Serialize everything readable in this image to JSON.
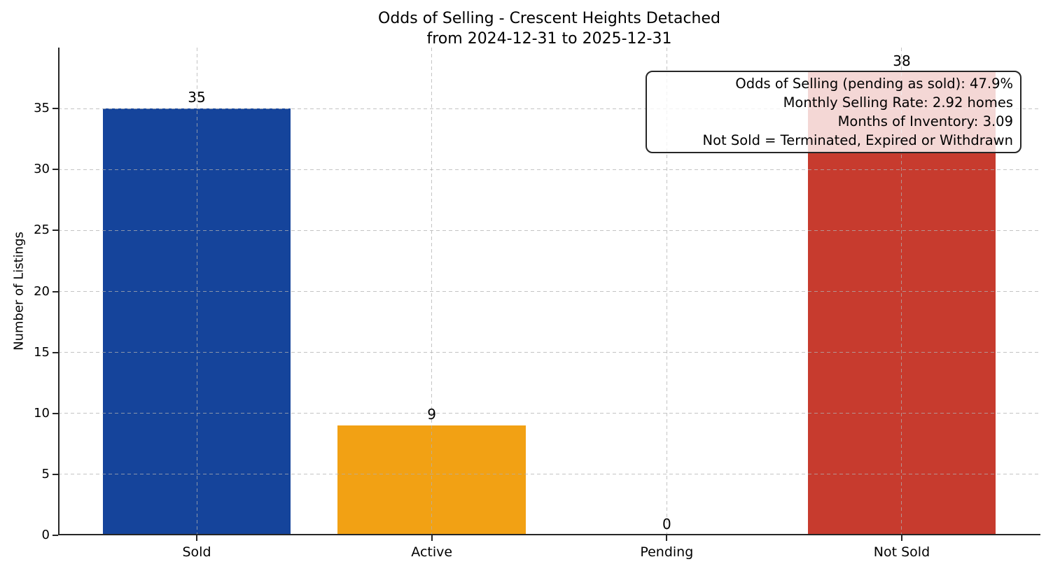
{
  "figure": {
    "background_color": "#ffffff",
    "axis_color": "#262626",
    "grid_color": "#b0b0b0"
  },
  "chart_data": {
    "type": "bar",
    "title": "Odds of Selling - Crescent Heights Detached",
    "subtitle": "from 2024-12-31 to 2025-12-31",
    "xlabel": "",
    "ylabel": "Number of Listings",
    "categories": [
      "Sold",
      "Active",
      "Pending",
      "Not Sold"
    ],
    "values": [
      35,
      9,
      0,
      38
    ],
    "value_labels": [
      "35",
      "9",
      "0",
      "38"
    ],
    "bar_colors": [
      "#15449b",
      "#f2a114",
      null,
      "#c73b2e"
    ],
    "yticks": [
      0,
      5,
      10,
      15,
      20,
      25,
      30,
      35
    ],
    "ylim": [
      0,
      40
    ],
    "grid": {
      "style": "dashed",
      "axes": "both",
      "above_bars": true
    },
    "legend": null,
    "annotation": {
      "lines": [
        "Odds of Selling (pending as sold): 47.9%",
        "Monthly Selling Rate: 2.92 homes",
        "Months of Inventory: 3.09",
        "Not Sold = Terminated, Expired or Withdrawn"
      ]
    }
  }
}
